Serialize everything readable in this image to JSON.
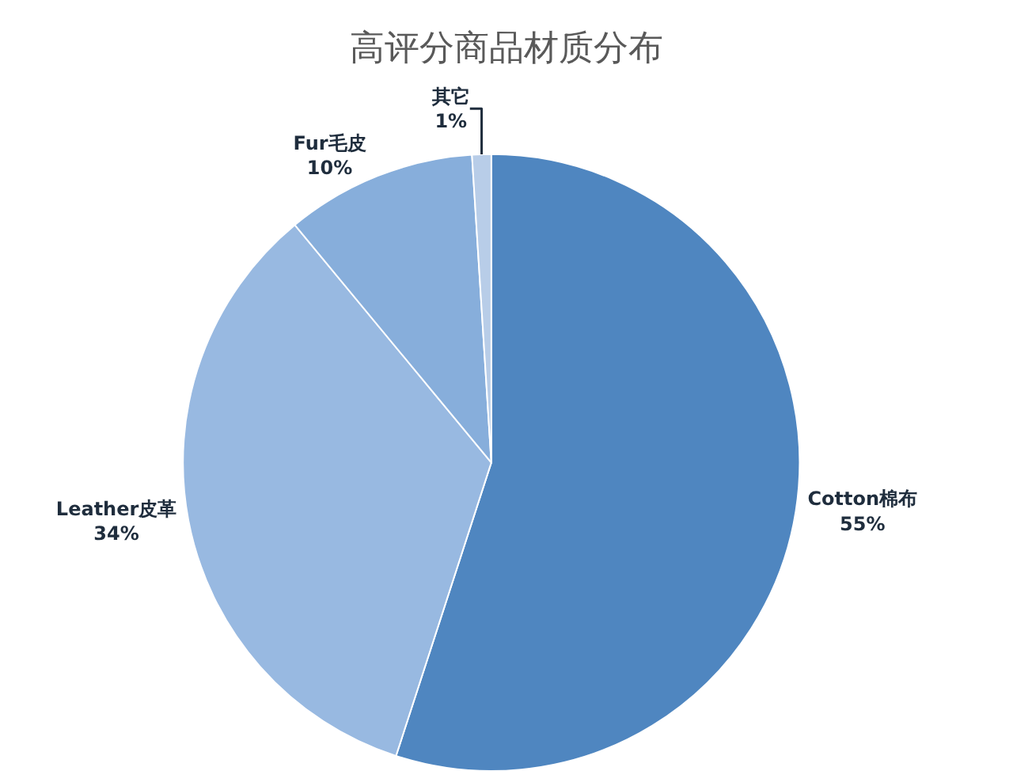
{
  "chart_data": {
    "type": "pie",
    "title": "高评分商品材质分布",
    "categories": [
      "Cotton棉布",
      "Leather皮革",
      "Fur毛皮",
      "其它"
    ],
    "values": [
      55,
      34,
      10,
      1
    ],
    "value_labels": [
      "55%",
      "34%",
      "10%",
      "1%"
    ],
    "colors": [
      "#4f86c0",
      "#98b9e1",
      "#87aedb",
      "#b8cde8"
    ],
    "legend": false
  }
}
